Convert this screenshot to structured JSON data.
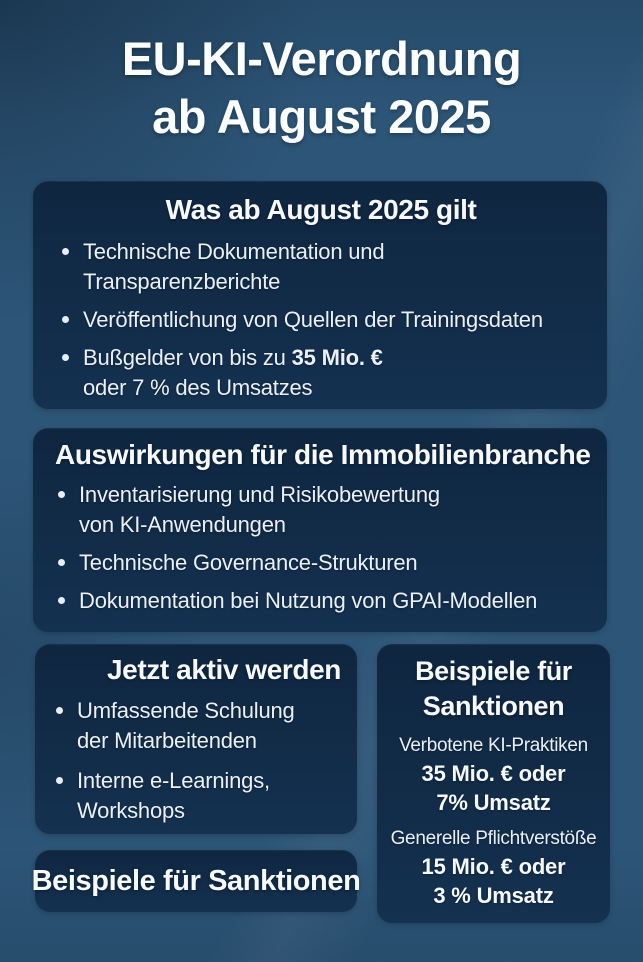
{
  "colors": {
    "background": "#2d5577",
    "card": "#12304a",
    "title_text": "#fbfdfe",
    "body_text": "#eaf0f6"
  },
  "header": {
    "title_line1": "EU-KI-Verordnung",
    "title_line2": "ab August 2025"
  },
  "card_what": {
    "title": "Was ab August 2025 gilt",
    "bullet1_line1": "Technische Dokumentation und",
    "bullet1_line2": "Transparenzberichte",
    "bullet2": "Veröffentlichung von Quellen der Trainingsdaten",
    "bullet3_regular": "Bußgelder von bis zu ",
    "bullet3_bold": "35 Mio. €",
    "bullet3_line2": "oder 7 % des Umsatzes"
  },
  "card_impact": {
    "title": "Auswirkungen für die Immobilienbranche",
    "bullet1_line1": "Inventarisierung und Risikobewertung",
    "bullet1_line2": "von KI-Anwendungen",
    "bullet2": "Technische Governance-Strukturen",
    "bullet3": "Dokumentation bei Nutzung von GPAI-Modellen"
  },
  "card_act": {
    "title": "Jetzt aktiv werden",
    "bullet1_line1": "Umfassende Schulung",
    "bullet1_line2": "der Mitarbeitenden",
    "bullet2_line1": "Interne e-Learnings,",
    "bullet2_line2": "Workshops"
  },
  "card_sanctions": {
    "title_line1": "Beispiele für",
    "title_line2": "Sanktionen",
    "item1_label": "Verbotene KI-Praktiken",
    "item1_value_line1": "35 Mio. € oder",
    "item1_value_line2": "7% Umsatz",
    "item2_label": "Generelle Pflichtverstöße",
    "item2_value_line1": "15 Mio. € oder",
    "item2_value_line2": "3 % Umsatz"
  },
  "card_sanctions_banner": {
    "title": "Beispiele für Sanktionen"
  }
}
